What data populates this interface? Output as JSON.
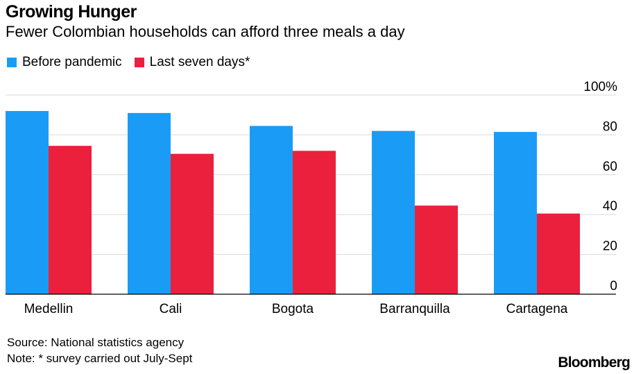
{
  "header": {
    "title": "Growing Hunger",
    "subtitle": "Fewer Colombian households can afford three meals a day"
  },
  "legend": [
    {
      "label": "Before pandemic",
      "color": "#1a9cf6"
    },
    {
      "label": "Last seven days*",
      "color": "#eb203c"
    }
  ],
  "chart_data": {
    "type": "bar",
    "categories": [
      "Medellin",
      "Cali",
      "Bogota",
      "Barranquilla",
      "Cartagena"
    ],
    "series": [
      {
        "name": "Before pandemic",
        "color": "#1a9cf6",
        "values": [
          92,
          91,
          84.5,
          82,
          81.5
        ]
      },
      {
        "name": "Last seven days*",
        "color": "#eb203c",
        "values": [
          74.5,
          70.5,
          72,
          44.5,
          40.5
        ]
      }
    ],
    "y_ticks": [
      "100%",
      "80",
      "60",
      "40",
      "20",
      "0"
    ],
    "ylim": [
      0,
      100
    ],
    "grid": true,
    "legend_position": "top-left"
  },
  "footer": {
    "source": "Source: National statistics agency",
    "note": "Note: * survey carried out July-Sept",
    "brand": "Bloomberg"
  }
}
